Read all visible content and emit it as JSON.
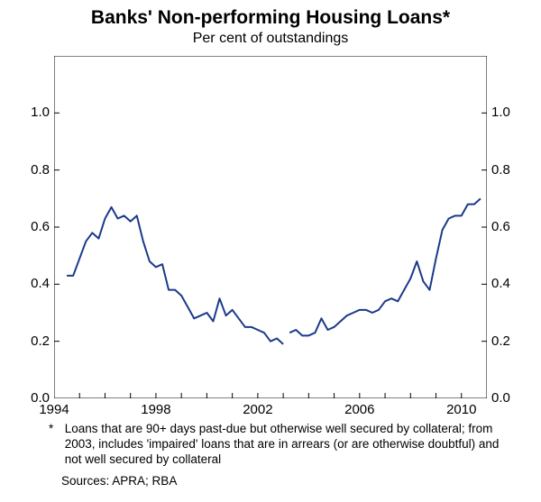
{
  "title": "Banks' Non-performing Housing Loans*",
  "subtitle": "Per cent of outstandings",
  "chart": {
    "type": "line",
    "background_color": "#ffffff",
    "axis_color": "#000000",
    "line_color": "#1b3a8a",
    "line_width": 2,
    "title_fontsize": 21,
    "subtitle_fontsize": 16,
    "tick_fontsize": 15,
    "footnote_fontsize": 13.5,
    "y_unit_left": "%",
    "y_unit_right": "%",
    "xlim": [
      1994,
      2011
    ],
    "ylim": [
      0.0,
      1.2
    ],
    "yticks": [
      0.0,
      0.2,
      0.4,
      0.6,
      0.8,
      1.0
    ],
    "xticks": [
      1994,
      1998,
      2002,
      2006,
      2010
    ],
    "series1": {
      "x": [
        1994.5,
        1994.75,
        1995.0,
        1995.25,
        1995.5,
        1995.75,
        1996.0,
        1996.25,
        1996.5,
        1996.75,
        1997.0,
        1997.25,
        1997.5,
        1997.75,
        1998.0,
        1998.25,
        1998.5,
        1998.75,
        1999.0,
        1999.25,
        1999.5,
        1999.75,
        2000.0,
        2000.25,
        2000.5,
        2000.75,
        2001.0,
        2001.25,
        2001.5,
        2001.75,
        2002.0,
        2002.25,
        2002.5,
        2002.75,
        2003.0
      ],
      "y": [
        0.43,
        0.43,
        0.49,
        0.55,
        0.58,
        0.56,
        0.63,
        0.67,
        0.63,
        0.64,
        0.62,
        0.64,
        0.55,
        0.48,
        0.46,
        0.47,
        0.38,
        0.38,
        0.36,
        0.32,
        0.28,
        0.29,
        0.3,
        0.27,
        0.35,
        0.29,
        0.31,
        0.28,
        0.25,
        0.25,
        0.24,
        0.23,
        0.2,
        0.21,
        0.19
      ]
    },
    "series2": {
      "x": [
        2003.25,
        2003.5,
        2003.75,
        2004.0,
        2004.25,
        2004.5,
        2004.75,
        2005.0,
        2005.25,
        2005.5,
        2005.75,
        2006.0,
        2006.25,
        2006.5,
        2006.75,
        2007.0,
        2007.25,
        2007.5,
        2007.75,
        2008.0,
        2008.25,
        2008.5,
        2008.75,
        2009.0,
        2009.25,
        2009.5,
        2009.75,
        2010.0,
        2010.25,
        2010.5,
        2010.75
      ],
      "y": [
        0.23,
        0.24,
        0.22,
        0.22,
        0.23,
        0.28,
        0.24,
        0.25,
        0.27,
        0.29,
        0.3,
        0.31,
        0.31,
        0.3,
        0.31,
        0.34,
        0.35,
        0.34,
        0.38,
        0.42,
        0.48,
        0.41,
        0.38,
        0.49,
        0.59,
        0.63,
        0.64,
        0.64,
        0.68,
        0.68,
        0.7
      ]
    }
  },
  "footnote_marker": "*",
  "footnote_text": "Loans that are 90+ days past-due but otherwise well secured by collateral; from 2003, includes 'impaired' loans that are in arrears (or are otherwise doubtful) and not well secured by collateral",
  "sources_label": "Sources:",
  "sources_text": "APRA; RBA"
}
